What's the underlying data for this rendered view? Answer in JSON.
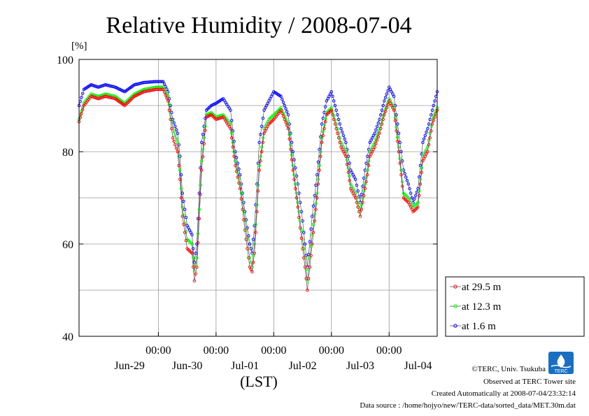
{
  "chart_data": {
    "type": "line",
    "title": "Relative Humidity / 2008-07-04",
    "ylabel": "[%]",
    "xlabel": "(LST)",
    "ylim": [
      40,
      100
    ],
    "yticks": [
      40,
      60,
      80,
      100
    ],
    "xlim_days": [
      "2008-06-28T15:00",
      "2008-07-04T20:00"
    ],
    "xticks_time": [
      "00:00",
      "00:00",
      "00:00",
      "00:00",
      "00:00"
    ],
    "xtick_days": [
      "Jun-29",
      "Jun-30",
      "Jul-01",
      "Jul-02",
      "Jul-03",
      "Jul-04"
    ],
    "grid": true,
    "legend_position": "right",
    "series": [
      {
        "name": "at 29.5 m",
        "color": "#ff0000",
        "x": [
          "06-28 15:00",
          "06-28 17:00",
          "06-28 20:00",
          "06-28 23:00",
          "06-29 02:00",
          "06-29 06:00",
          "06-29 10:00",
          "06-29 14:00",
          "06-29 18:00",
          "06-29 23:00",
          "06-30 02:00",
          "06-30 04:00",
          "06-30 06:00",
          "06-30 08:00",
          "06-30 09:00",
          "06-30 10:00",
          "06-30 12:00",
          "06-30 14:00",
          "06-30 15:00",
          "06-30 16:00",
          "06-30 18:00",
          "06-30 20:00",
          "06-30 22:00",
          "07-01 00:00",
          "07-01 03:00",
          "07-01 06:00",
          "07-01 08:00",
          "07-01 10:00",
          "07-01 12:00",
          "07-01 14:00",
          "07-01 15:00",
          "07-01 16:00",
          "07-01 18:00",
          "07-01 20:00",
          "07-01 22:00",
          "07-02 00:00",
          "07-02 03:00",
          "07-02 06:00",
          "07-02 08:00",
          "07-02 10:00",
          "07-02 12:00",
          "07-02 13:00",
          "07-02 14:00",
          "07-02 16:00",
          "07-02 18:00",
          "07-02 20:00",
          "07-02 22:00",
          "07-03 00:00",
          "07-03 02:00",
          "07-03 04:00",
          "07-03 06:00",
          "07-03 08:00",
          "07-03 10:00",
          "07-03 12:00",
          "07-03 14:00",
          "07-03 15:00",
          "07-03 16:00",
          "07-03 18:00",
          "07-03 20:00",
          "07-03 22:00",
          "07-04 00:00",
          "07-04 02:00",
          "07-04 04:00",
          "07-04 06:00",
          "07-04 08:00",
          "07-04 10:00",
          "07-04 12:00",
          "07-04 14:00",
          "07-04 16:00",
          "07-04 18:00",
          "07-04 20:00"
        ],
        "y": [
          86.5,
          90,
          92,
          91.5,
          92,
          91.5,
          90,
          92,
          93,
          93.5,
          93.5,
          91,
          83,
          80,
          74,
          66,
          59,
          58,
          52,
          55,
          76,
          87.5,
          88,
          87,
          87.5,
          85,
          77,
          72,
          63,
          55,
          54,
          58,
          76,
          84,
          86,
          87,
          89,
          85,
          76,
          68,
          59,
          55,
          50,
          60,
          70,
          82,
          88,
          89,
          85,
          81,
          79,
          72,
          70,
          66,
          72,
          75,
          79,
          81,
          84,
          88,
          91,
          89,
          80,
          70,
          69,
          67,
          68,
          78,
          80,
          86,
          89
        ]
      },
      {
        "name": "at 12.3 m",
        "color": "#00ff00",
        "x": [
          "06-28 15:00",
          "06-28 17:00",
          "06-28 20:00",
          "06-28 23:00",
          "06-29 02:00",
          "06-29 06:00",
          "06-29 10:00",
          "06-29 14:00",
          "06-29 18:00",
          "06-29 23:00",
          "06-30 02:00",
          "06-30 04:00",
          "06-30 06:00",
          "06-30 08:00",
          "06-30 09:00",
          "06-30 10:00",
          "06-30 12:00",
          "06-30 14:00",
          "06-30 15:00",
          "06-30 16:00",
          "06-30 18:00",
          "06-30 20:00",
          "06-30 22:00",
          "07-01 00:00",
          "07-01 03:00",
          "07-01 06:00",
          "07-01 08:00",
          "07-01 10:00",
          "07-01 12:00",
          "07-01 14:00",
          "07-01 15:00",
          "07-01 16:00",
          "07-01 18:00",
          "07-01 20:00",
          "07-01 22:00",
          "07-02 00:00",
          "07-02 03:00",
          "07-02 06:00",
          "07-02 08:00",
          "07-02 10:00",
          "07-02 12:00",
          "07-02 13:00",
          "07-02 14:00",
          "07-02 16:00",
          "07-02 18:00",
          "07-02 20:00",
          "07-02 22:00",
          "07-03 00:00",
          "07-03 02:00",
          "07-03 04:00",
          "07-03 06:00",
          "07-03 08:00",
          "07-03 10:00",
          "07-03 12:00",
          "07-03 14:00",
          "07-03 15:00",
          "07-03 16:00",
          "07-03 18:00",
          "07-03 20:00",
          "07-03 22:00",
          "07-04 00:00",
          "07-04 02:00",
          "07-04 04:00",
          "07-04 06:00",
          "07-04 08:00",
          "07-04 10:00",
          "07-04 12:00",
          "07-04 14:00",
          "07-04 16:00",
          "07-04 18:00",
          "07-04 20:00"
        ],
        "y": [
          87,
          90.5,
          92.5,
          92,
          92.5,
          92,
          90.5,
          92.5,
          93.5,
          94,
          94,
          92,
          85,
          82,
          76,
          68,
          61,
          60,
          54,
          57,
          78,
          88,
          88.5,
          87.5,
          88,
          86,
          78,
          73,
          65,
          57,
          55,
          60,
          77,
          85,
          87,
          88,
          89.5,
          86,
          77,
          69,
          61,
          57,
          52,
          62,
          71,
          83,
          88.5,
          89.5,
          86,
          82,
          80,
          73,
          71,
          67,
          73,
          76,
          80,
          82,
          85,
          88.5,
          91.5,
          89.5,
          81,
          71,
          70,
          68,
          69,
          79,
          81,
          87,
          89.5
        ]
      },
      {
        "name": "at 1.6 m",
        "color": "#0000ff",
        "x": [
          "06-28 15:00",
          "06-28 17:00",
          "06-28 20:00",
          "06-28 23:00",
          "06-29 02:00",
          "06-29 06:00",
          "06-29 10:00",
          "06-29 14:00",
          "06-29 18:00",
          "06-29 23:00",
          "06-30 02:00",
          "06-30 04:00",
          "06-30 06:00",
          "06-30 08:00",
          "06-30 09:00",
          "06-30 10:00",
          "06-30 12:00",
          "06-30 14:00",
          "06-30 15:00",
          "06-30 16:00",
          "06-30 18:00",
          "06-30 20:00",
          "06-30 22:00",
          "07-01 00:00",
          "07-01 03:00",
          "07-01 06:00",
          "07-01 08:00",
          "07-01 10:00",
          "07-01 12:00",
          "07-01 14:00",
          "07-01 15:00",
          "07-01 16:00",
          "07-01 18:00",
          "07-01 20:00",
          "07-01 22:00",
          "07-02 00:00",
          "07-02 03:00",
          "07-02 06:00",
          "07-02 08:00",
          "07-02 10:00",
          "07-02 12:00",
          "07-02 13:00",
          "07-02 14:00",
          "07-02 16:00",
          "07-02 18:00",
          "07-02 20:00",
          "07-02 22:00",
          "07-03 00:00",
          "07-03 02:00",
          "07-03 04:00",
          "07-03 06:00",
          "07-03 08:00",
          "07-03 10:00",
          "07-03 12:00",
          "07-03 14:00",
          "07-03 15:00",
          "07-03 16:00",
          "07-03 18:00",
          "07-03 20:00",
          "07-03 22:00",
          "07-04 00:00",
          "07-04 02:00",
          "07-04 04:00",
          "07-04 06:00",
          "07-04 08:00",
          "07-04 10:00",
          "07-04 12:00",
          "07-04 14:00",
          "07-04 16:00",
          "07-04 18:00",
          "07-04 20:00"
        ],
        "y": [
          90,
          93.5,
          94.5,
          94,
          94.5,
          94,
          93,
          94.5,
          95,
          95.2,
          95.2,
          93,
          87,
          84,
          79,
          71,
          64,
          62,
          56,
          60,
          82,
          89,
          90,
          90.5,
          91.5,
          89,
          80,
          75,
          67,
          60,
          58,
          64,
          82,
          89,
          91,
          93,
          92,
          88,
          80,
          73,
          65,
          60,
          55,
          66,
          75,
          86,
          91,
          93,
          89,
          85,
          82,
          76,
          74,
          69,
          76,
          79,
          82,
          84,
          87,
          91,
          94,
          92,
          84,
          76,
          73,
          69,
          72,
          82,
          85,
          89,
          93
        ]
      }
    ]
  },
  "footer": {
    "copyright": "©TERC, Univ. Tsukuba",
    "observed": "Observed at TERC Tower site",
    "created": "Created Automatically at 2008-07-04/23:32:14",
    "source": "Data source : /home/hojyo/new/TERC-data/sorted_data/MET.30m.dat",
    "logo_text": "TERC"
  }
}
